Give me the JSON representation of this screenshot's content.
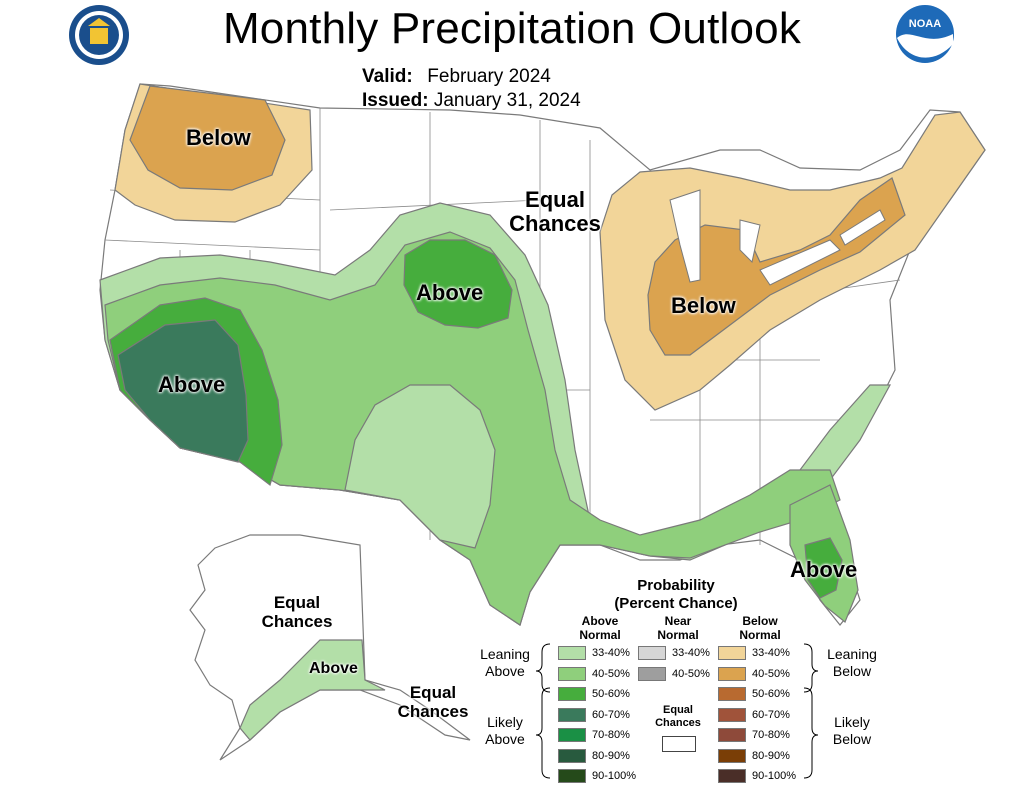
{
  "header": {
    "title": "Monthly Precipitation Outlook",
    "valid_label": "Valid:",
    "valid_value": "February 2024",
    "issued_label": "Issued:",
    "issued_value": "January 31, 2024"
  },
  "logos": {
    "left": "seal-icon",
    "right": "NOAA"
  },
  "map_labels": {
    "below_northwest": "Below",
    "equal_chances_central": [
      "Equal",
      "Chances"
    ],
    "above_plains": "Above",
    "above_southwest": "Above",
    "below_east": "Below",
    "above_florida": "Above",
    "equal_chances_alaska": [
      "Equal",
      "Chances"
    ],
    "above_alaska": "Above",
    "equal_chances_panhandle": [
      "Equal",
      "Chances"
    ]
  },
  "legend": {
    "title": [
      "Probability",
      "(Percent Chance)"
    ],
    "col_above": [
      "Above",
      "Normal"
    ],
    "col_near": [
      "Near",
      "Normal"
    ],
    "col_below": [
      "Below",
      "Normal"
    ],
    "leaning_above": [
      "Leaning",
      "Above"
    ],
    "leaning_below": [
      "Leaning",
      "Below"
    ],
    "likely_above": [
      "Likely",
      "Above"
    ],
    "likely_below": [
      "Likely",
      "Below"
    ],
    "equal_chances": [
      "Equal",
      "Chances"
    ],
    "above": [
      {
        "range": "33-40%",
        "color": "#b3dfa8"
      },
      {
        "range": "40-50%",
        "color": "#8fcf7c"
      },
      {
        "range": "50-60%",
        "color": "#46ad3d"
      },
      {
        "range": "60-70%",
        "color": "#3a7a5c"
      },
      {
        "range": "70-80%",
        "color": "#1a9045"
      },
      {
        "range": "80-90%",
        "color": "#285a3e"
      },
      {
        "range": "90-100%",
        "color": "#254a1a"
      }
    ],
    "near": [
      {
        "range": "33-40%",
        "color": "#d6d6d6"
      },
      {
        "range": "40-50%",
        "color": "#9e9e9e"
      }
    ],
    "below": [
      {
        "range": "33-40%",
        "color": "#f2d599"
      },
      {
        "range": "40-50%",
        "color": "#dba34f"
      },
      {
        "range": "50-60%",
        "color": "#b86a30"
      },
      {
        "range": "60-70%",
        "color": "#a0533a"
      },
      {
        "range": "70-80%",
        "color": "#8e4a3a"
      },
      {
        "range": "80-90%",
        "color": "#7a3e06"
      },
      {
        "range": "90-100%",
        "color": "#4a2e28"
      }
    ]
  }
}
